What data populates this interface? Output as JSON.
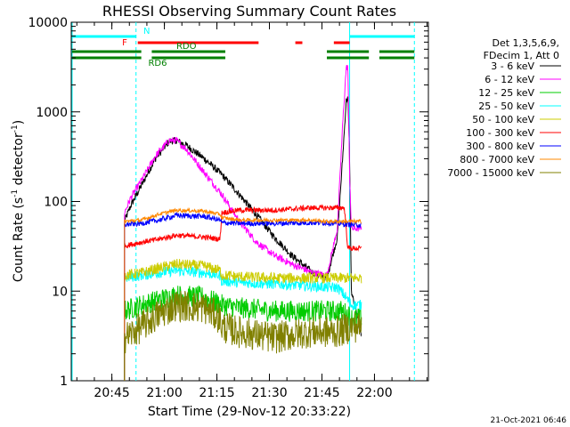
{
  "chart_data": {
    "type": "line",
    "title": "RHESSI Observing Summary Count Rates",
    "xlabel": "Start Time (29-Nov-12 20:33:22)",
    "ylabel_main": "Count Rate (s",
    "ylabel_sup1": "-1",
    "ylabel_mid": " detector",
    "ylabel_sup2": "-1",
    "ylabel_end": ")",
    "x_unit": "minutes after 20:33:22",
    "xlim": [
      0,
      102
    ],
    "ylim": [
      1,
      10000
    ],
    "yscale": "log",
    "x_ticks": [
      {
        "t": 11.6,
        "label": "20:45"
      },
      {
        "t": 26.6,
        "label": "21:00"
      },
      {
        "t": 41.6,
        "label": "21:15"
      },
      {
        "t": 56.6,
        "label": "21:30"
      },
      {
        "t": 71.6,
        "label": "21:45"
      },
      {
        "t": 86.6,
        "label": "22:00"
      }
    ],
    "y_ticks": [
      {
        "v": 1,
        "label": "1"
      },
      {
        "v": 10,
        "label": "10"
      },
      {
        "v": 100,
        "label": "100"
      },
      {
        "v": 1000,
        "label": "1000"
      },
      {
        "v": 10000,
        "label": "10000"
      }
    ],
    "legend_position": "right",
    "legend_header": [
      "Det 1,3,5,6,9,",
      "FDecim 1, Att 0"
    ],
    "series": [
      {
        "name": "3 - 6 keV",
        "color": "#000000",
        "noise": 0.04,
        "points": [
          [
            15.2,
            60
          ],
          [
            17,
            90
          ],
          [
            20,
            150
          ],
          [
            24,
            300
          ],
          [
            28,
            470
          ],
          [
            30,
            480
          ],
          [
            33,
            420
          ],
          [
            38,
            300
          ],
          [
            43,
            200
          ],
          [
            48,
            120
          ],
          [
            53,
            70
          ],
          [
            58,
            40
          ],
          [
            63,
            25
          ],
          [
            69,
            16
          ],
          [
            73,
            14
          ],
          [
            76,
            40
          ],
          [
            77.5,
            300
          ],
          [
            78.5,
            1300
          ],
          [
            79,
            1500
          ],
          [
            79.5,
            300
          ],
          [
            80,
            10
          ],
          [
            83,
            3
          ]
        ]
      },
      {
        "name": "6 - 12 keV",
        "color": "#ff00ff",
        "noise": 0.04,
        "points": [
          [
            15.2,
            75
          ],
          [
            17,
            110
          ],
          [
            20,
            170
          ],
          [
            24,
            320
          ],
          [
            28,
            480
          ],
          [
            30,
            480
          ],
          [
            33,
            380
          ],
          [
            38,
            210
          ],
          [
            43,
            120
          ],
          [
            48,
            60
          ],
          [
            53,
            35
          ],
          [
            58,
            25
          ],
          [
            63,
            20
          ],
          [
            69,
            16
          ],
          [
            73,
            15
          ],
          [
            76,
            50
          ],
          [
            77.5,
            700
          ],
          [
            78.5,
            3000
          ],
          [
            79,
            3300
          ],
          [
            79.5,
            200
          ],
          [
            80,
            50
          ],
          [
            83,
            50
          ]
        ]
      },
      {
        "name": "12 - 25 keV",
        "color": "#00cc00",
        "noise": 0.12,
        "points": [
          [
            15.2,
            6
          ],
          [
            20,
            7
          ],
          [
            25,
            8
          ],
          [
            30,
            9
          ],
          [
            38,
            8.5
          ],
          [
            43,
            7
          ],
          [
            48,
            6.5
          ],
          [
            58,
            6
          ],
          [
            68,
            6
          ],
          [
            73,
            6
          ],
          [
            77,
            6
          ],
          [
            79,
            5.5
          ],
          [
            80,
            5
          ],
          [
            83,
            5
          ]
        ]
      },
      {
        "name": "25 - 50 keV",
        "color": "#00ffff",
        "noise": 0.06,
        "points": [
          [
            15.2,
            14
          ],
          [
            20,
            15
          ],
          [
            25,
            16
          ],
          [
            30,
            17
          ],
          [
            38,
            16
          ],
          [
            42.5,
            15
          ],
          [
            43,
            13
          ],
          [
            48,
            12.5
          ],
          [
            58,
            12
          ],
          [
            68,
            11.5
          ],
          [
            73,
            11
          ],
          [
            76,
            11
          ],
          [
            78,
            9
          ],
          [
            79,
            8
          ],
          [
            80,
            7
          ],
          [
            83,
            7
          ]
        ]
      },
      {
        "name": "50 - 100 keV",
        "color": "#cccc00",
        "noise": 0.06,
        "points": [
          [
            15.2,
            15
          ],
          [
            20,
            16
          ],
          [
            25,
            18
          ],
          [
            30,
            20
          ],
          [
            38,
            19
          ],
          [
            42.5,
            17
          ],
          [
            43,
            15
          ],
          [
            48,
            14.5
          ],
          [
            58,
            14
          ],
          [
            68,
            14
          ],
          [
            73,
            14
          ],
          [
            76,
            14
          ],
          [
            80,
            14
          ],
          [
            83,
            14
          ]
        ]
      },
      {
        "name": "100 - 300 keV",
        "color": "#ff0000",
        "noise": 0.03,
        "points": [
          [
            15.2,
            32
          ],
          [
            20,
            35
          ],
          [
            25,
            38
          ],
          [
            30,
            42
          ],
          [
            38,
            40
          ],
          [
            42.5,
            38
          ],
          [
            43,
            75
          ],
          [
            48,
            80
          ],
          [
            58,
            80
          ],
          [
            68,
            85
          ],
          [
            73,
            85
          ],
          [
            76,
            85
          ],
          [
            78,
            85
          ],
          [
            79,
            30
          ],
          [
            80,
            30
          ],
          [
            83,
            30
          ]
        ]
      },
      {
        "name": "300 - 800 keV",
        "color": "#0000ff",
        "noise": 0.03,
        "points": [
          [
            15.2,
            55
          ],
          [
            20,
            57
          ],
          [
            25,
            62
          ],
          [
            30,
            70
          ],
          [
            38,
            68
          ],
          [
            42.5,
            62
          ],
          [
            43,
            58
          ],
          [
            48,
            57
          ],
          [
            58,
            57
          ],
          [
            68,
            58
          ],
          [
            73,
            58
          ],
          [
            76,
            57
          ],
          [
            80,
            55
          ],
          [
            83,
            55
          ]
        ]
      },
      {
        "name": "800 - 7000 keV",
        "color": "#ff8800",
        "noise": 0.02,
        "points": [
          [
            15.2,
            60
          ],
          [
            20,
            62
          ],
          [
            25,
            72
          ],
          [
            30,
            80
          ],
          [
            38,
            78
          ],
          [
            42.5,
            72
          ],
          [
            43,
            66
          ],
          [
            48,
            62
          ],
          [
            58,
            62
          ],
          [
            68,
            62
          ],
          [
            73,
            60
          ],
          [
            76,
            60
          ],
          [
            80,
            60
          ],
          [
            83,
            60
          ]
        ]
      },
      {
        "name": "7000 - 15000 keV",
        "color": "#808000",
        "noise": 0.18,
        "points": [
          [
            15.2,
            3
          ],
          [
            20,
            4
          ],
          [
            25,
            5.5
          ],
          [
            30,
            7
          ],
          [
            38,
            6.5
          ],
          [
            42.5,
            5
          ],
          [
            43,
            4
          ],
          [
            48,
            3.5
          ],
          [
            58,
            3
          ],
          [
            68,
            3.5
          ],
          [
            73,
            3.5
          ],
          [
            76,
            3.5
          ],
          [
            80,
            4
          ],
          [
            83,
            4
          ]
        ]
      }
    ],
    "flag_bars": [
      {
        "label": "N",
        "color": "#00ffff",
        "level": 1,
        "label_t": 20.6,
        "label_side": "above",
        "segments": [
          [
            0,
            18.5
          ],
          [
            79.5,
            98
          ]
        ]
      },
      {
        "label": "F",
        "color": "#ff0000",
        "level": 2,
        "label_t": 16.5,
        "label_side": "left",
        "segments": [
          [
            19,
            53.5
          ],
          [
            64,
            66
          ],
          [
            75,
            79.5
          ]
        ]
      },
      {
        "label": "RDO",
        "color": "#008000",
        "level": 3,
        "label_t": 30,
        "label_side": "above",
        "segments": [
          [
            0,
            20
          ],
          [
            23,
            44
          ],
          [
            73,
            85
          ],
          [
            88,
            98
          ]
        ]
      },
      {
        "label": "RD6",
        "color": "#008000",
        "level": 4,
        "label_t": 22,
        "label_side": "below",
        "segments": [
          [
            0,
            20
          ],
          [
            23,
            44
          ],
          [
            73,
            85
          ],
          [
            88,
            98
          ]
        ]
      }
    ],
    "vlines": [
      {
        "t": 0,
        "color": "#00ffff",
        "dashed": false
      },
      {
        "t": 18.5,
        "color": "#00ffff",
        "dashed": true
      },
      {
        "t": 79.5,
        "color": "#00ffff",
        "dashed": false
      },
      {
        "t": 98,
        "color": "#00ffff",
        "dashed": true
      }
    ]
  },
  "footer_date": "21-Oct-2021 06:46"
}
